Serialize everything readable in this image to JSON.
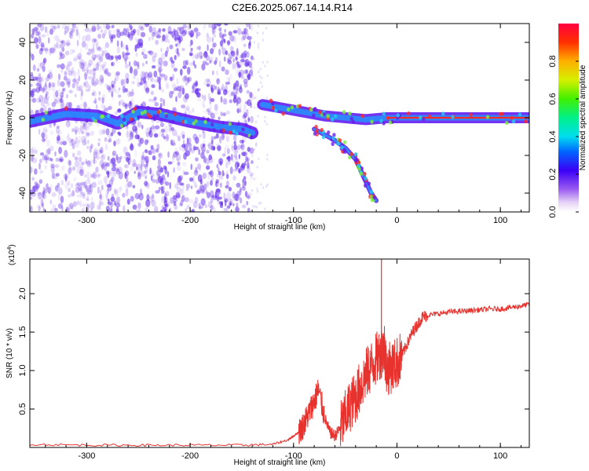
{
  "page": {
    "title": "C2E6.2025.067.14.14.R14"
  },
  "chart_data": [
    {
      "type": "heatmap",
      "xlabel": "Height of straight line (km)",
      "ylabel": "Frequency (Hz)",
      "xlim": [
        -355,
        128
      ],
      "ylim": [
        -50,
        50
      ],
      "x_ticks": [
        -300,
        -200,
        -100,
        0,
        100
      ],
      "y_ticks": [
        -40,
        -20,
        0,
        20,
        40
      ],
      "colorbar": {
        "label": "Normalized spectral amplitude",
        "range": [
          0.0,
          1.0
        ],
        "ticks": [
          0.0,
          0.2,
          0.4,
          0.6,
          0.8
        ],
        "colormap": "rainbow"
      },
      "ridges": [
        {
          "name": "",
          "x": [
            -355,
            -320,
            -290,
            -270,
            -250,
            -230,
            -200,
            -170,
            -150,
            -140
          ],
          "y": [
            -2,
            2,
            1,
            -3,
            3,
            2,
            -2,
            -5,
            -6,
            -8
          ]
        },
        {
          "name": "",
          "x": [
            -130,
            -110,
            -90,
            -70,
            -50,
            -30,
            -10,
            0,
            50,
            100,
            128
          ],
          "y": [
            7,
            5,
            3,
            1,
            0,
            -1,
            0,
            0,
            0,
            0,
            0
          ]
        },
        {
          "name": "",
          "x": [
            -80,
            -70,
            -60,
            -50,
            -40,
            -35,
            -30,
            -25,
            -20
          ],
          "y": [
            -6,
            -9,
            -12,
            -16,
            -22,
            -28,
            -34,
            -40,
            -44
          ]
        }
      ]
    },
    {
      "type": "line",
      "xlabel": "Height of straight line (km)",
      "ylabel": "SNR (10 * v/v)",
      "exponent_label": "(x10",
      "exponent_power": "4",
      "exponent_close": ")",
      "xlim": [
        -355,
        128
      ],
      "ylim": [
        0,
        2.45
      ],
      "x_ticks": [
        -300,
        -200,
        -100,
        0,
        100
      ],
      "y_ticks": [
        0.5,
        1.0,
        1.5,
        2.0
      ],
      "color": "#e8322e",
      "series": [
        {
          "name": "",
          "x": [
            -355,
            -300,
            -250,
            -200,
            -150,
            -120,
            -105,
            -100,
            -95,
            -90,
            -85,
            -80,
            -76,
            -70,
            -65,
            -60,
            -55,
            -50,
            -45,
            -40,
            -35,
            -30,
            -25,
            -20,
            -15,
            -12,
            -10,
            -5,
            0,
            5,
            10,
            15,
            20,
            25,
            30,
            40,
            50,
            60,
            70,
            80,
            90,
            100,
            110,
            120,
            128
          ],
          "y": [
            0.04,
            0.03,
            0.03,
            0.03,
            0.03,
            0.04,
            0.1,
            0.15,
            0.2,
            0.3,
            0.45,
            0.6,
            0.75,
            0.4,
            0.2,
            0.15,
            0.25,
            0.4,
            0.55,
            0.65,
            0.8,
            0.95,
            1.05,
            1.15,
            1.25,
            1.3,
            1.0,
            1.05,
            1.1,
            1.2,
            1.35,
            1.5,
            1.6,
            1.7,
            1.72,
            1.74,
            1.76,
            1.77,
            1.78,
            1.79,
            1.8,
            1.8,
            1.82,
            1.84,
            1.86
          ]
        }
      ],
      "spike": {
        "x": -15,
        "y": 2.45
      }
    }
  ]
}
